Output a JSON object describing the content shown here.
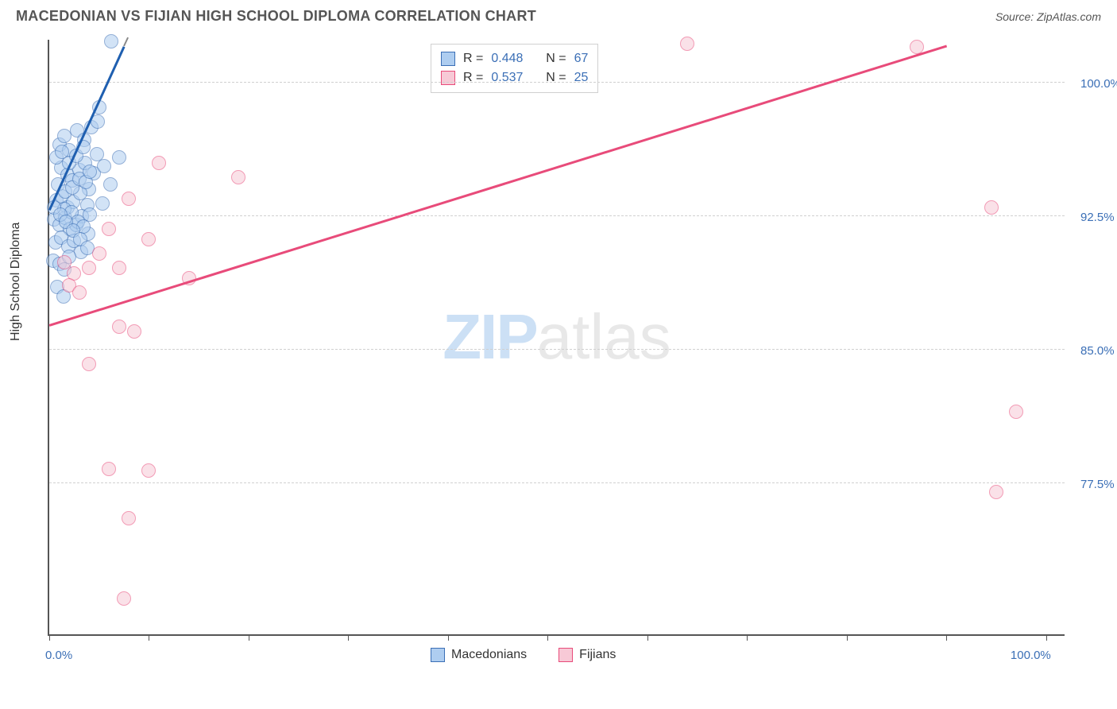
{
  "title": "MACEDONIAN VS FIJIAN HIGH SCHOOL DIPLOMA CORRELATION CHART",
  "source_label": "Source: ZipAtlas.com",
  "y_axis_label": "High School Diploma",
  "watermark_zip": "ZIP",
  "watermark_atlas": "atlas",
  "chart": {
    "type": "scatter",
    "xlim": [
      0,
      102
    ],
    "ylim": [
      69,
      102.5
    ],
    "x_ticks": [
      0,
      10,
      20,
      30,
      40,
      50,
      60,
      70,
      80,
      90,
      100
    ],
    "x_tick_labels": {
      "0": "0.0%",
      "100": "100.0%"
    },
    "y_gridlines": [
      77.5,
      85.0,
      92.5,
      100.0
    ],
    "y_tick_labels": [
      "77.5%",
      "85.0%",
      "92.5%",
      "100.0%"
    ],
    "background_color": "#ffffff",
    "grid_color": "#d0d0d0",
    "axis_color": "#555555",
    "label_color": "#3b6fb6",
    "marker_radius": 9,
    "series": [
      {
        "name": "Macedonians",
        "fill": "#aecdf0",
        "fill_opacity": 0.55,
        "stroke": "#3b6fb6",
        "trend_color": "#1f5fb0",
        "trend_p1": [
          0,
          92.8
        ],
        "trend_p2": [
          7.5,
          102
        ],
        "trend_dashed_p2": [
          10,
          105
        ],
        "R": "0.448",
        "N": "67",
        "points": [
          [
            6.2,
            102.3
          ],
          [
            1.0,
            96.5
          ],
          [
            1.5,
            97.0
          ],
          [
            2.0,
            96.2
          ],
          [
            2.8,
            97.3
          ],
          [
            3.5,
            96.8
          ],
          [
            4.2,
            97.5
          ],
          [
            5.0,
            98.6
          ],
          [
            1.2,
            95.2
          ],
          [
            1.8,
            94.8
          ],
          [
            2.3,
            94.5
          ],
          [
            3.0,
            95.1
          ],
          [
            3.6,
            95.5
          ],
          [
            4.0,
            94.0
          ],
          [
            7.0,
            95.8
          ],
          [
            0.7,
            93.4
          ],
          [
            1.3,
            93.6
          ],
          [
            1.8,
            93.0
          ],
          [
            2.4,
            93.3
          ],
          [
            3.1,
            93.8
          ],
          [
            3.8,
            93.1
          ],
          [
            4.5,
            94.9
          ],
          [
            5.3,
            93.2
          ],
          [
            0.5,
            92.3
          ],
          [
            1.0,
            92.0
          ],
          [
            1.6,
            92.4
          ],
          [
            2.1,
            91.8
          ],
          [
            2.7,
            92.0
          ],
          [
            3.3,
            92.5
          ],
          [
            3.9,
            91.5
          ],
          [
            0.6,
            91.0
          ],
          [
            1.2,
            91.3
          ],
          [
            1.9,
            90.8
          ],
          [
            2.5,
            91.1
          ],
          [
            3.2,
            90.5
          ],
          [
            0.4,
            90.0
          ],
          [
            1.0,
            89.8
          ],
          [
            1.5,
            89.5
          ],
          [
            2.0,
            90.2
          ],
          [
            0.8,
            88.5
          ],
          [
            1.4,
            88.0
          ],
          [
            1.5,
            92.9
          ],
          [
            2.2,
            92.7
          ],
          [
            2.9,
            92.2
          ],
          [
            3.4,
            91.9
          ],
          [
            4.1,
            92.6
          ],
          [
            4.8,
            96.0
          ],
          [
            5.5,
            95.3
          ],
          [
            6.1,
            94.3
          ],
          [
            4.9,
            97.8
          ],
          [
            0.9,
            94.3
          ],
          [
            1.6,
            93.9
          ],
          [
            2.3,
            94.1
          ],
          [
            3.0,
            94.6
          ],
          [
            3.7,
            94.4
          ],
          [
            0.5,
            93.0
          ],
          [
            1.1,
            92.6
          ],
          [
            1.7,
            92.2
          ],
          [
            2.4,
            91.7
          ],
          [
            3.1,
            91.2
          ],
          [
            3.8,
            90.7
          ],
          [
            0.7,
            95.8
          ],
          [
            1.3,
            96.1
          ],
          [
            2.0,
            95.5
          ],
          [
            2.7,
            95.9
          ],
          [
            3.4,
            96.4
          ],
          [
            4.1,
            95.0
          ]
        ]
      },
      {
        "name": "Fijians",
        "fill": "#f7c9d6",
        "fill_opacity": 0.55,
        "stroke": "#e84b7a",
        "trend_color": "#e84b7a",
        "trend_p1": [
          0,
          86.3
        ],
        "trend_p2": [
          90,
          102
        ],
        "R": "0.537",
        "N": "25",
        "points": [
          [
            64,
            102.2
          ],
          [
            87,
            102.0
          ],
          [
            11,
            95.5
          ],
          [
            19,
            94.7
          ],
          [
            8,
            93.5
          ],
          [
            6,
            91.8
          ],
          [
            10,
            91.2
          ],
          [
            5,
            90.4
          ],
          [
            1.5,
            89.9
          ],
          [
            2.5,
            89.3
          ],
          [
            4,
            89.6
          ],
          [
            7,
            89.6
          ],
          [
            14,
            89.0
          ],
          [
            2,
            88.6
          ],
          [
            3,
            88.2
          ],
          [
            7,
            86.3
          ],
          [
            8.5,
            86.0
          ],
          [
            4,
            84.2
          ],
          [
            6,
            78.3
          ],
          [
            10,
            78.2
          ],
          [
            8,
            75.5
          ],
          [
            97,
            81.5
          ],
          [
            95,
            77.0
          ],
          [
            7.5,
            71.0
          ],
          [
            94.5,
            93.0
          ]
        ]
      }
    ]
  },
  "legend_top": [
    {
      "swatch_fill": "#aecdf0",
      "swatch_stroke": "#3b6fb6",
      "r_label": "R =",
      "r_value": "0.448",
      "n_label": "N =",
      "n_value": "67"
    },
    {
      "swatch_fill": "#f7c9d6",
      "swatch_stroke": "#e84b7a",
      "r_label": "R =",
      "r_value": "0.537",
      "n_label": "N =",
      "n_value": "25"
    }
  ],
  "legend_bottom": [
    {
      "swatch_fill": "#aecdf0",
      "swatch_stroke": "#3b6fb6",
      "label": "Macedonians"
    },
    {
      "swatch_fill": "#f7c9d6",
      "swatch_stroke": "#e84b7a",
      "label": "Fijians"
    }
  ]
}
